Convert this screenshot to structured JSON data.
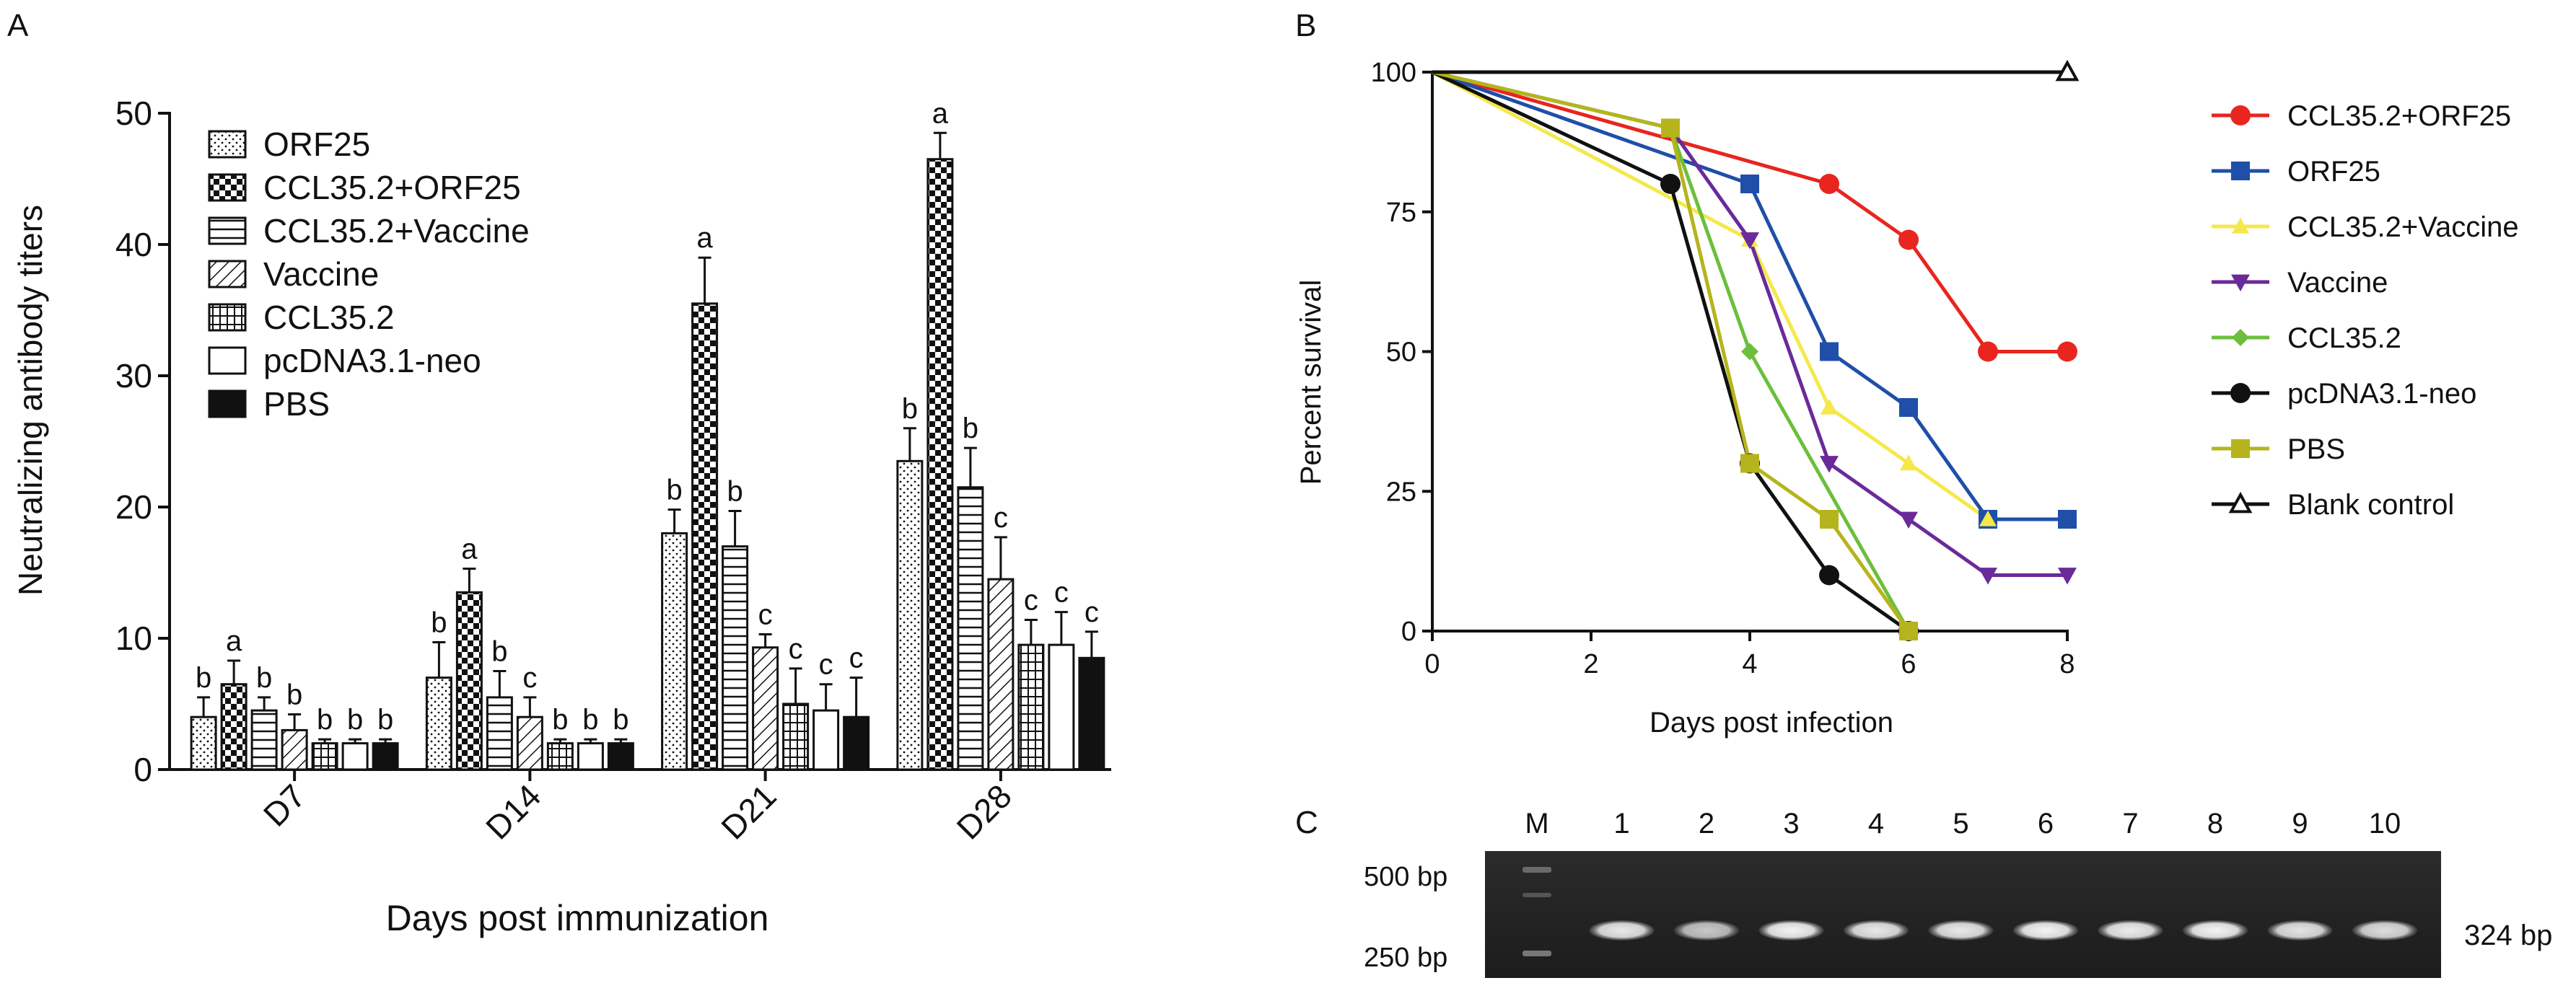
{
  "panel_labels": {
    "a": "A",
    "b": "B",
    "c": "C"
  },
  "chart_data": [
    {
      "type": "bar",
      "panel": "A",
      "ylabel": "Neutralizing antibody titers",
      "xlabel": "Days post immunization",
      "ylim": [
        0,
        50
      ],
      "yticks": [
        0,
        10,
        20,
        30,
        40,
        50
      ],
      "categories": [
        "D7",
        "D14",
        "D21",
        "D28"
      ],
      "series": [
        {
          "name": "ORF25",
          "pattern": "dots",
          "values": [
            4,
            7,
            18,
            23.5
          ],
          "errors": [
            1.5,
            2.7,
            1.8,
            2.5
          ],
          "letters": [
            "b",
            "b",
            "b",
            "b"
          ]
        },
        {
          "name": "CCL35.2+ORF25",
          "pattern": "checker",
          "values": [
            6.5,
            13.5,
            35.5,
            46.5
          ],
          "errors": [
            1.8,
            1.8,
            3.5,
            2.0
          ],
          "letters": [
            "a",
            "a",
            "a",
            "a"
          ]
        },
        {
          "name": "CCL35.2+Vaccine",
          "pattern": "hlines",
          "values": [
            4.5,
            5.5,
            17,
            21.5
          ],
          "errors": [
            1.0,
            2.0,
            2.7,
            3.0
          ],
          "letters": [
            "b",
            "b",
            "b",
            "b"
          ]
        },
        {
          "name": "Vaccine",
          "pattern": "diag",
          "values": [
            3,
            4,
            9.3,
            14.5
          ],
          "errors": [
            1.2,
            1.5,
            1.0,
            3.2
          ],
          "letters": [
            "b",
            "c",
            "c",
            "c"
          ]
        },
        {
          "name": "CCL35.2",
          "pattern": "grid",
          "values": [
            2,
            2,
            5,
            9.5
          ],
          "errors": [
            0.3,
            0.3,
            2.7,
            1.9
          ],
          "letters": [
            "b",
            "b",
            "c",
            "c"
          ]
        },
        {
          "name": "pcDNA3.1-neo",
          "pattern": "empty",
          "values": [
            2,
            2,
            4.5,
            9.5
          ],
          "errors": [
            0.3,
            0.3,
            2.0,
            2.5
          ],
          "letters": [
            "b",
            "b",
            "c",
            "c"
          ]
        },
        {
          "name": "PBS",
          "pattern": "solid",
          "values": [
            2,
            2,
            4,
            8.5
          ],
          "errors": [
            0.3,
            0.3,
            3.0,
            2.0
          ],
          "letters": [
            "b",
            "b",
            "c",
            "c"
          ]
        }
      ]
    },
    {
      "type": "line",
      "panel": "B",
      "ylabel": "Percent survival",
      "xlabel": "Days post infection",
      "xlim": [
        0,
        8
      ],
      "ylim": [
        0,
        100
      ],
      "xticks": [
        0,
        2,
        4,
        6,
        8
      ],
      "yticks": [
        0,
        25,
        50,
        75,
        100
      ],
      "series": [
        {
          "name": "CCL35.2+ORF25",
          "color": "#e8251f",
          "marker": "circle",
          "x": [
            0,
            5,
            6,
            7,
            8
          ],
          "y": [
            100,
            80,
            70,
            50,
            50
          ]
        },
        {
          "name": "ORF25",
          "color": "#1f4fa8",
          "marker": "square",
          "x": [
            0,
            4,
            5,
            6,
            7,
            8
          ],
          "y": [
            100,
            80,
            50,
            40,
            20,
            20
          ]
        },
        {
          "name": "CCL35.2+Vaccine",
          "color": "#f5e84a",
          "marker": "triangle-up",
          "x": [
            0,
            4,
            5,
            6,
            7
          ],
          "y": [
            100,
            70,
            40,
            30,
            20
          ]
        },
        {
          "name": "Vaccine",
          "color": "#6a2a9a",
          "marker": "triangle-down",
          "x": [
            0,
            3,
            4,
            5,
            6,
            7,
            8
          ],
          "y": [
            100,
            90,
            70,
            30,
            20,
            10,
            10
          ]
        },
        {
          "name": "CCL35.2",
          "color": "#6cbf3c",
          "marker": "diamond",
          "x": [
            0,
            3,
            4,
            6
          ],
          "y": [
            100,
            90,
            50,
            0
          ]
        },
        {
          "name": "pcDNA3.1-neo",
          "color": "#111111",
          "marker": "circle",
          "x": [
            0,
            3,
            4,
            5,
            6
          ],
          "y": [
            100,
            80,
            30,
            10,
            0
          ]
        },
        {
          "name": "PBS",
          "color": "#b5b41c",
          "marker": "square",
          "x": [
            0,
            3,
            4,
            5,
            6
          ],
          "y": [
            100,
            90,
            30,
            20,
            0
          ]
        },
        {
          "name": "Blank control",
          "color": "#111111",
          "marker": "triangle-open",
          "x": [
            0,
            8
          ],
          "y": [
            100,
            100
          ]
        }
      ]
    }
  ],
  "gel": {
    "panel": "C",
    "lanes": [
      "M",
      "1",
      "2",
      "3",
      "4",
      "5",
      "6",
      "7",
      "8",
      "9",
      "10"
    ],
    "band_intensity": [
      0,
      0.9,
      0.75,
      0.95,
      0.9,
      0.9,
      0.95,
      0.92,
      0.95,
      0.88,
      0.85
    ],
    "markers": [
      "500 bp",
      "250 bp"
    ],
    "product_label": "324 bp"
  }
}
